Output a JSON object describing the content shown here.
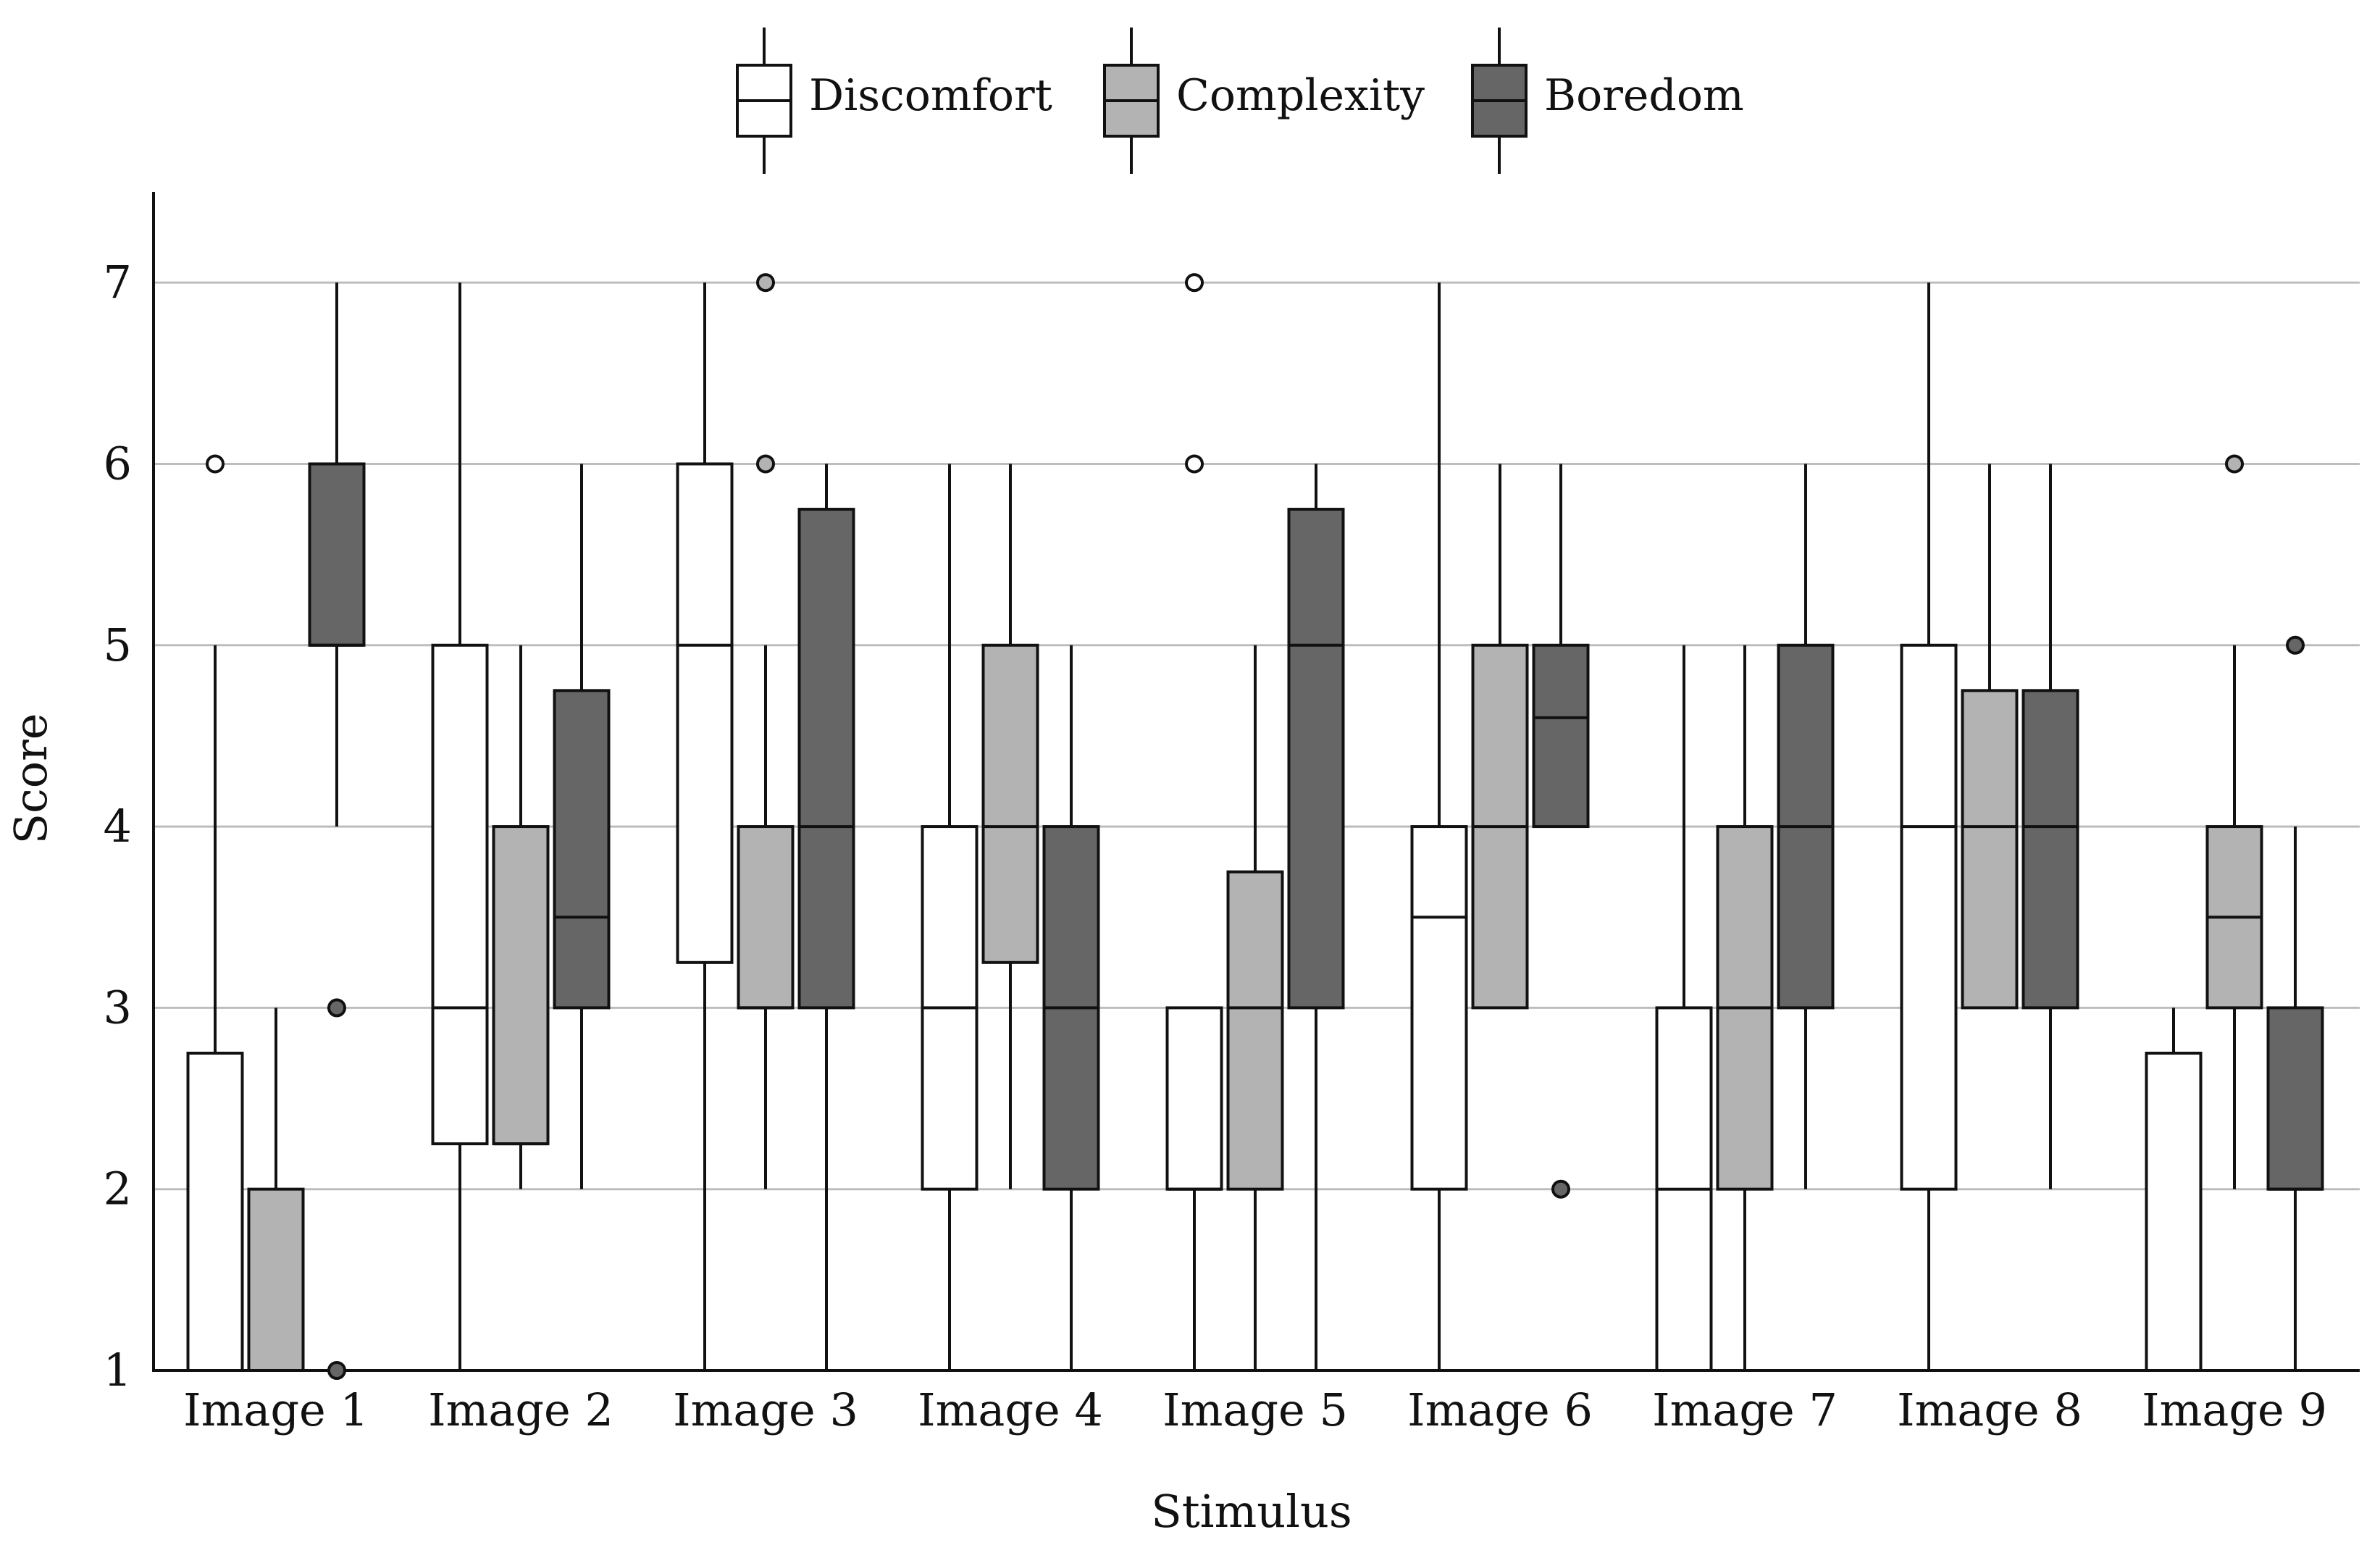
{
  "chart_data": {
    "type": "boxplot",
    "xlabel": "Stimulus",
    "ylabel": "Score",
    "ylim": [
      1,
      7.5
    ],
    "yticks": [
      1,
      2,
      3,
      4,
      5,
      6,
      7
    ],
    "grid": true,
    "legend_position": "top-center",
    "categories": [
      "Image 1",
      "Image 2",
      "Image 3",
      "Image 4",
      "Image 5",
      "Image 6",
      "Image 7",
      "Image 8",
      "Image 9"
    ],
    "series": [
      {
        "name": "Discomfort",
        "color": "#ffffff",
        "boxes": [
          {
            "whislo": 1,
            "q1": 1,
            "med": 1,
            "q3": 2.75,
            "whishi": 5,
            "fliers": [
              6
            ]
          },
          {
            "whislo": 1,
            "q1": 2.25,
            "med": 3,
            "q3": 5,
            "whishi": 7,
            "fliers": []
          },
          {
            "whislo": 1,
            "q1": 3.25,
            "med": 5,
            "q3": 6,
            "whishi": 7,
            "fliers": []
          },
          {
            "whislo": 1,
            "q1": 2,
            "med": 3,
            "q3": 4,
            "whishi": 6,
            "fliers": []
          },
          {
            "whislo": 1,
            "q1": 2,
            "med": 2,
            "q3": 3,
            "whishi": 3,
            "fliers": [
              6,
              7
            ]
          },
          {
            "whislo": 1,
            "q1": 2,
            "med": 3.5,
            "q3": 4,
            "whishi": 7,
            "fliers": []
          },
          {
            "whislo": 1,
            "q1": 1,
            "med": 2,
            "q3": 3,
            "whishi": 5,
            "fliers": []
          },
          {
            "whislo": 1,
            "q1": 2,
            "med": 4,
            "q3": 5,
            "whishi": 7,
            "fliers": []
          },
          {
            "whislo": 1,
            "q1": 1,
            "med": 1,
            "q3": 2.75,
            "whishi": 3,
            "fliers": []
          }
        ]
      },
      {
        "name": "Complexity",
        "color": "#b3b3b3",
        "boxes": [
          {
            "whislo": 1,
            "q1": 1,
            "med": 1,
            "q3": 2,
            "whishi": 3,
            "fliers": []
          },
          {
            "whislo": 2,
            "q1": 2.25,
            "med": 2.25,
            "q3": 4,
            "whishi": 5,
            "fliers": []
          },
          {
            "whislo": 2,
            "q1": 3,
            "med": 3,
            "q3": 4,
            "whishi": 5,
            "fliers": [
              6,
              7
            ]
          },
          {
            "whislo": 2,
            "q1": 3.25,
            "med": 4,
            "q3": 5,
            "whishi": 6,
            "fliers": []
          },
          {
            "whislo": 1,
            "q1": 2,
            "med": 3,
            "q3": 3.75,
            "whishi": 5,
            "fliers": []
          },
          {
            "whislo": 3,
            "q1": 3,
            "med": 4,
            "q3": 5,
            "whishi": 6,
            "fliers": []
          },
          {
            "whislo": 1,
            "q1": 2,
            "med": 3,
            "q3": 4,
            "whishi": 5,
            "fliers": []
          },
          {
            "whislo": 3,
            "q1": 3,
            "med": 4,
            "q3": 4.75,
            "whishi": 6,
            "fliers": []
          },
          {
            "whislo": 2,
            "q1": 3,
            "med": 3.5,
            "q3": 4,
            "whishi": 5,
            "fliers": [
              6
            ]
          }
        ]
      },
      {
        "name": "Boredom",
        "color": "#666666",
        "boxes": [
          {
            "whislo": 4,
            "q1": 5,
            "med": 5,
            "q3": 6,
            "whishi": 7,
            "fliers": [
              1,
              3
            ]
          },
          {
            "whislo": 2,
            "q1": 3,
            "med": 3.5,
            "q3": 4.75,
            "whishi": 6,
            "fliers": []
          },
          {
            "whislo": 1,
            "q1": 3,
            "med": 4,
            "q3": 5.75,
            "whishi": 6,
            "fliers": []
          },
          {
            "whislo": 1,
            "q1": 2,
            "med": 3,
            "q3": 4,
            "whishi": 5,
            "fliers": []
          },
          {
            "whislo": 1,
            "q1": 3,
            "med": 5,
            "q3": 5.75,
            "whishi": 6,
            "fliers": []
          },
          {
            "whislo": 4,
            "q1": 4,
            "med": 4.6,
            "q3": 5,
            "whishi": 6,
            "fliers": [
              2
            ]
          },
          {
            "whislo": 2,
            "q1": 3,
            "med": 4,
            "q3": 5,
            "whishi": 6,
            "fliers": []
          },
          {
            "whislo": 2,
            "q1": 3,
            "med": 4,
            "q3": 4.75,
            "whishi": 6,
            "fliers": []
          },
          {
            "whislo": 1,
            "q1": 2,
            "med": 2,
            "q3": 3,
            "whishi": 4,
            "fliers": [
              5
            ]
          }
        ]
      }
    ]
  }
}
